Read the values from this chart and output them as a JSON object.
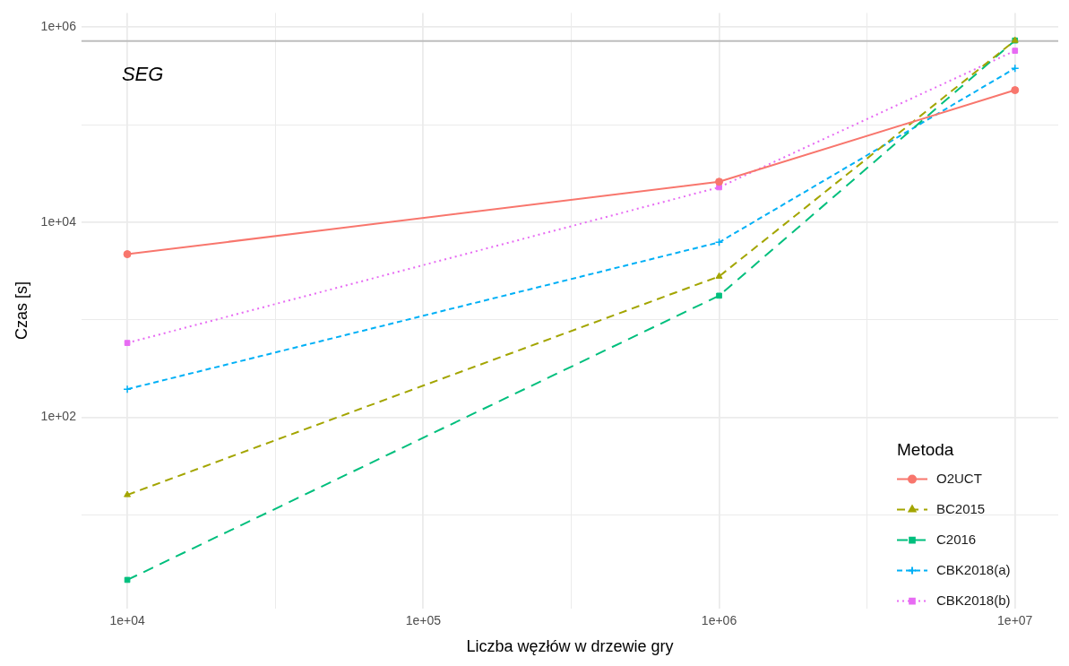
{
  "chart_data": {
    "type": "line",
    "xlabel": "Liczba węzłów w drzewie gry",
    "ylabel": "Czas [s]",
    "legend_title": "Metoda",
    "legend": "bottom right",
    "log": "xy",
    "grid": true,
    "x": [
      10000,
      1000000,
      10000000
    ],
    "xlim": [
      7000,
      14000000
    ],
    "xticks": [
      {
        "value": 10000,
        "label": "1e+04"
      },
      {
        "value": 31623,
        "label": null
      },
      {
        "value": 100000,
        "label": "1e+05"
      },
      {
        "value": 316228,
        "label": null
      },
      {
        "value": 1000000,
        "label": "1e+06"
      },
      {
        "value": 3162278,
        "label": null
      },
      {
        "value": 10000000,
        "label": "1e+07"
      }
    ],
    "ylim": [
      1.1,
      1400000
    ],
    "yticks": [
      {
        "value": 10,
        "label": null
      },
      {
        "value": 100,
        "label": "1e+02"
      },
      {
        "value": 1000,
        "label": null
      },
      {
        "value": 10000,
        "label": "1e+04"
      },
      {
        "value": 100000,
        "label": null
      },
      {
        "value": 1000000,
        "label": "1e+06"
      }
    ],
    "series": [
      {
        "name": "O2UCT",
        "color": "#f8766d",
        "values": [
          4700,
          26000,
          226000
        ],
        "marker": "circle",
        "line_style": "solid"
      },
      {
        "name": "BC2015",
        "color": "#a3a500",
        "values": [
          16,
          2780,
          730000
        ],
        "marker": "triangle",
        "line_style": "dashed"
      },
      {
        "name": "C2016",
        "color": "#00bf7d",
        "values": [
          2.15,
          1765,
          730000
        ],
        "marker": "square",
        "line_style": "dashed"
      },
      {
        "name": "CBK2018(a)",
        "color": "#00b0f6",
        "values": [
          194,
          6220,
          379000
        ],
        "marker": "cross",
        "line_style": "dashed"
      },
      {
        "name": "CBK2018(b)",
        "color": "#e76bf3",
        "values": [
          578,
          22800,
          573000
        ],
        "marker": "square",
        "line_style": "dotted"
      }
    ],
    "ref_lines": [
      {
        "axis": "y",
        "value": 720000,
        "color": "#bebebe"
      }
    ],
    "annotations": [
      "SEG"
    ]
  }
}
